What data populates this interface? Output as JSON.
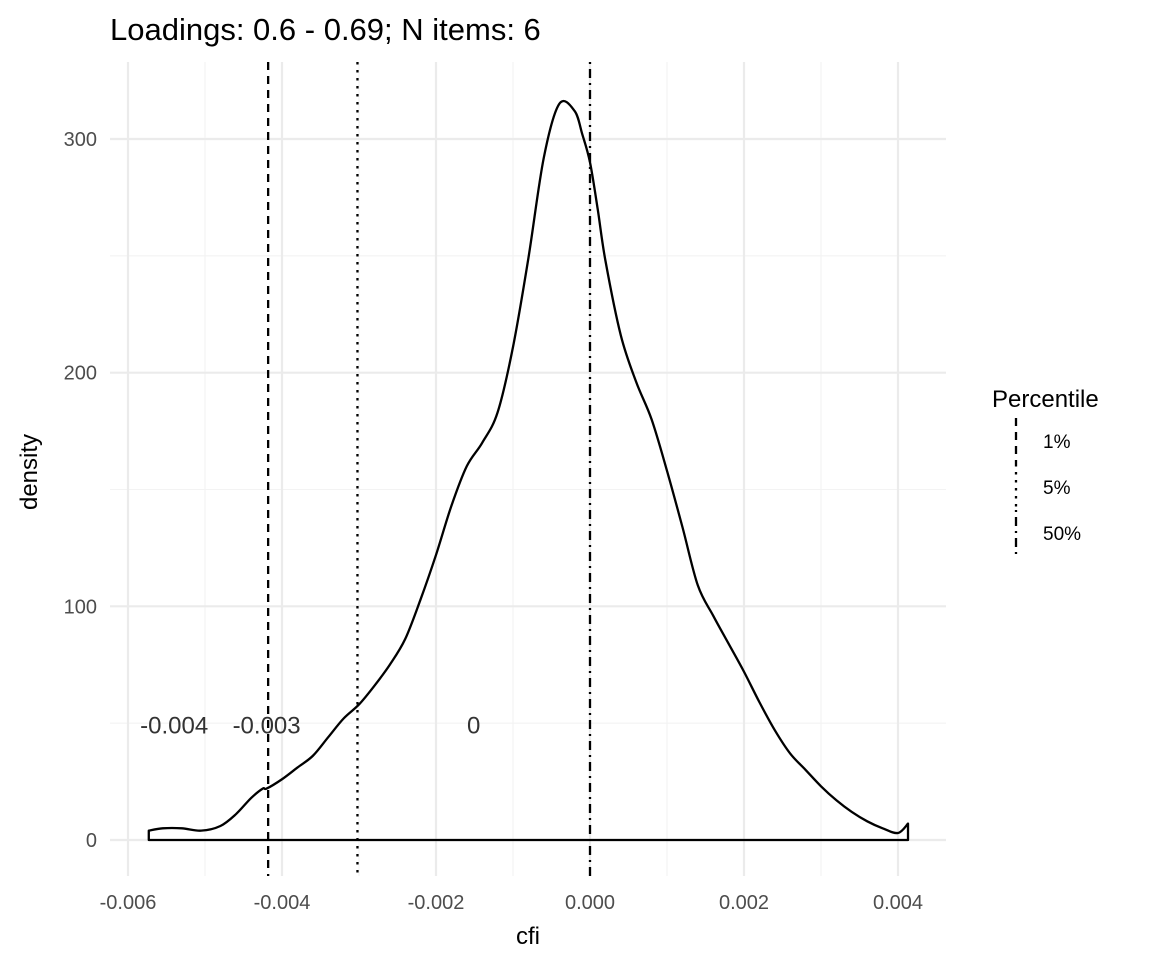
{
  "chart_data": {
    "type": "density",
    "title": "Loadings: 0.6 - 0.69; N items: 6",
    "xlabel": "cfi",
    "ylabel": "density",
    "xlim": [
      -0.006,
      0.0042
    ],
    "ylim": [
      0,
      330
    ],
    "x_ticks": [
      -0.006,
      -0.004,
      -0.002,
      0.0,
      0.002,
      0.004
    ],
    "x_tick_labels": [
      "-0.006",
      "-0.004",
      "-0.002",
      "0.000",
      "0.002",
      "0.004"
    ],
    "y_ticks": [
      0,
      100,
      200,
      300
    ],
    "y_tick_labels": [
      "0",
      "100",
      "200",
      "300"
    ],
    "grid": true,
    "density_curve": {
      "x": [
        -0.00573,
        -0.00555,
        -0.0053,
        -0.00505,
        -0.0048,
        -0.0046,
        -0.0044,
        -0.00425,
        -0.0042,
        -0.004,
        -0.0038,
        -0.0036,
        -0.0034,
        -0.0032,
        -0.003,
        -0.0028,
        -0.0026,
        -0.0024,
        -0.0022,
        -0.002,
        -0.0018,
        -0.0016,
        -0.0014,
        -0.0012,
        -0.001,
        -0.0008,
        -0.0006,
        -0.0004,
        -0.0002,
        -0.0001,
        0.0,
        0.0001,
        0.0002,
        0.0004,
        0.0006,
        0.0008,
        0.001,
        0.0012,
        0.0014,
        0.0016,
        0.0018,
        0.002,
        0.0022,
        0.0024,
        0.0026,
        0.0028,
        0.003,
        0.0032,
        0.0034,
        0.0036,
        0.0038,
        0.004,
        0.00413
      ],
      "y": [
        4,
        5,
        5,
        4,
        6,
        11,
        18,
        22,
        22,
        26,
        31,
        36,
        44,
        52,
        58,
        66,
        75,
        86,
        103,
        122,
        143,
        160,
        170,
        183,
        211,
        249,
        292,
        315,
        312,
        302,
        290,
        270,
        248,
        216,
        196,
        180,
        158,
        134,
        109,
        96,
        84,
        72,
        59,
        47,
        37,
        30,
        23,
        17,
        12,
        8,
        5,
        3,
        7
      ]
    },
    "percentile_lines": [
      {
        "name": "1%",
        "x": -0.00418,
        "linestyle": "dashed",
        "label": "-0.004",
        "label_x": -0.0054
      },
      {
        "name": "5%",
        "x": -0.00302,
        "linestyle": "dotted",
        "label": "-0.003",
        "label_x": -0.0042
      },
      {
        "name": "50%",
        "x": 0.0,
        "linestyle": "dotdash",
        "label": "0",
        "label_x": -0.00151
      }
    ],
    "label_y": 49,
    "legend": {
      "title": "Percentile",
      "entries": [
        "1%",
        "5%",
        "50%"
      ],
      "position": "right"
    }
  }
}
